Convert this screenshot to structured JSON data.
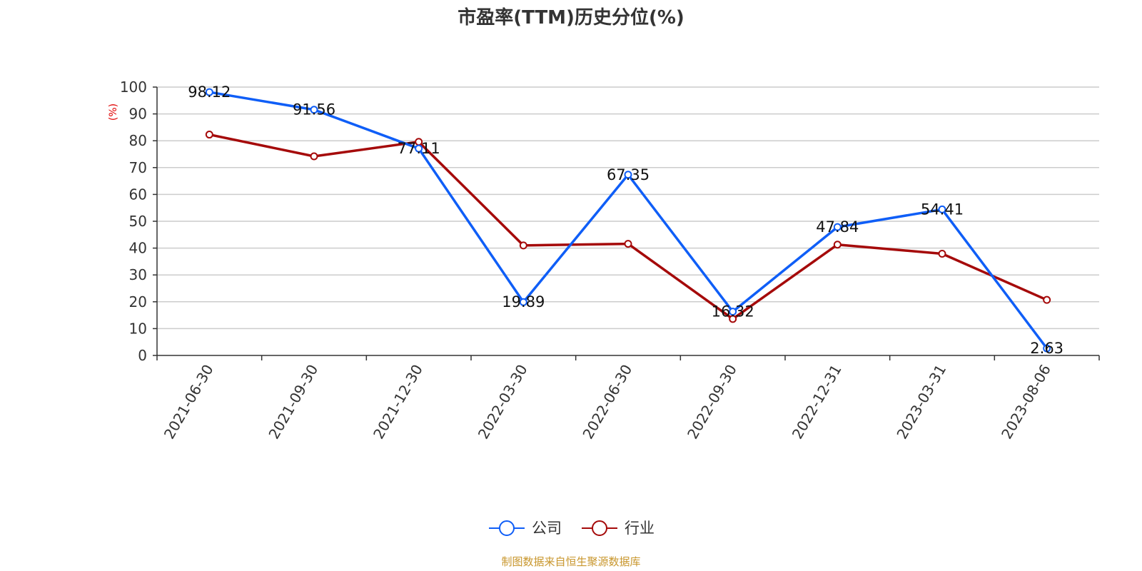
{
  "chart_data": {
    "type": "line",
    "title": "市盈率(TTM)历史分位(%)",
    "ylabel": "(%)",
    "xlabel": "",
    "ylim": [
      0,
      100
    ],
    "y_ticks": [
      "0",
      "10",
      "20",
      "30",
      "40",
      "50",
      "60",
      "70",
      "80",
      "90",
      "100"
    ],
    "grid": true,
    "legend_position": "bottom-center",
    "categories": [
      "2021-06-30",
      "2021-09-30",
      "2021-12-30",
      "2022-03-30",
      "2022-06-30",
      "2022-09-30",
      "2022-12-31",
      "2023-03-31",
      "2023-08-06"
    ],
    "series": [
      {
        "name": "公司",
        "color": "#0f5ef7",
        "values": [
          98.12,
          91.56,
          77.11,
          19.89,
          67.35,
          16.32,
          47.84,
          54.41,
          2.63
        ],
        "data_labels": [
          "98.12",
          "91.56",
          "77.11",
          "19.89",
          "67.35",
          "16.32",
          "47.84",
          "54.41",
          "2.63"
        ]
      },
      {
        "name": "行业",
        "color": "#a50a0a",
        "values": [
          82.3,
          74.2,
          79.6,
          41.0,
          41.6,
          13.6,
          41.3,
          37.9,
          20.7
        ]
      }
    ],
    "source": "制图数据来自恒生聚源数据库",
    "colors": {
      "ylabel": "#e00000",
      "source": "#c8962c",
      "grid": "#cccccc",
      "axis": "#333333"
    }
  }
}
